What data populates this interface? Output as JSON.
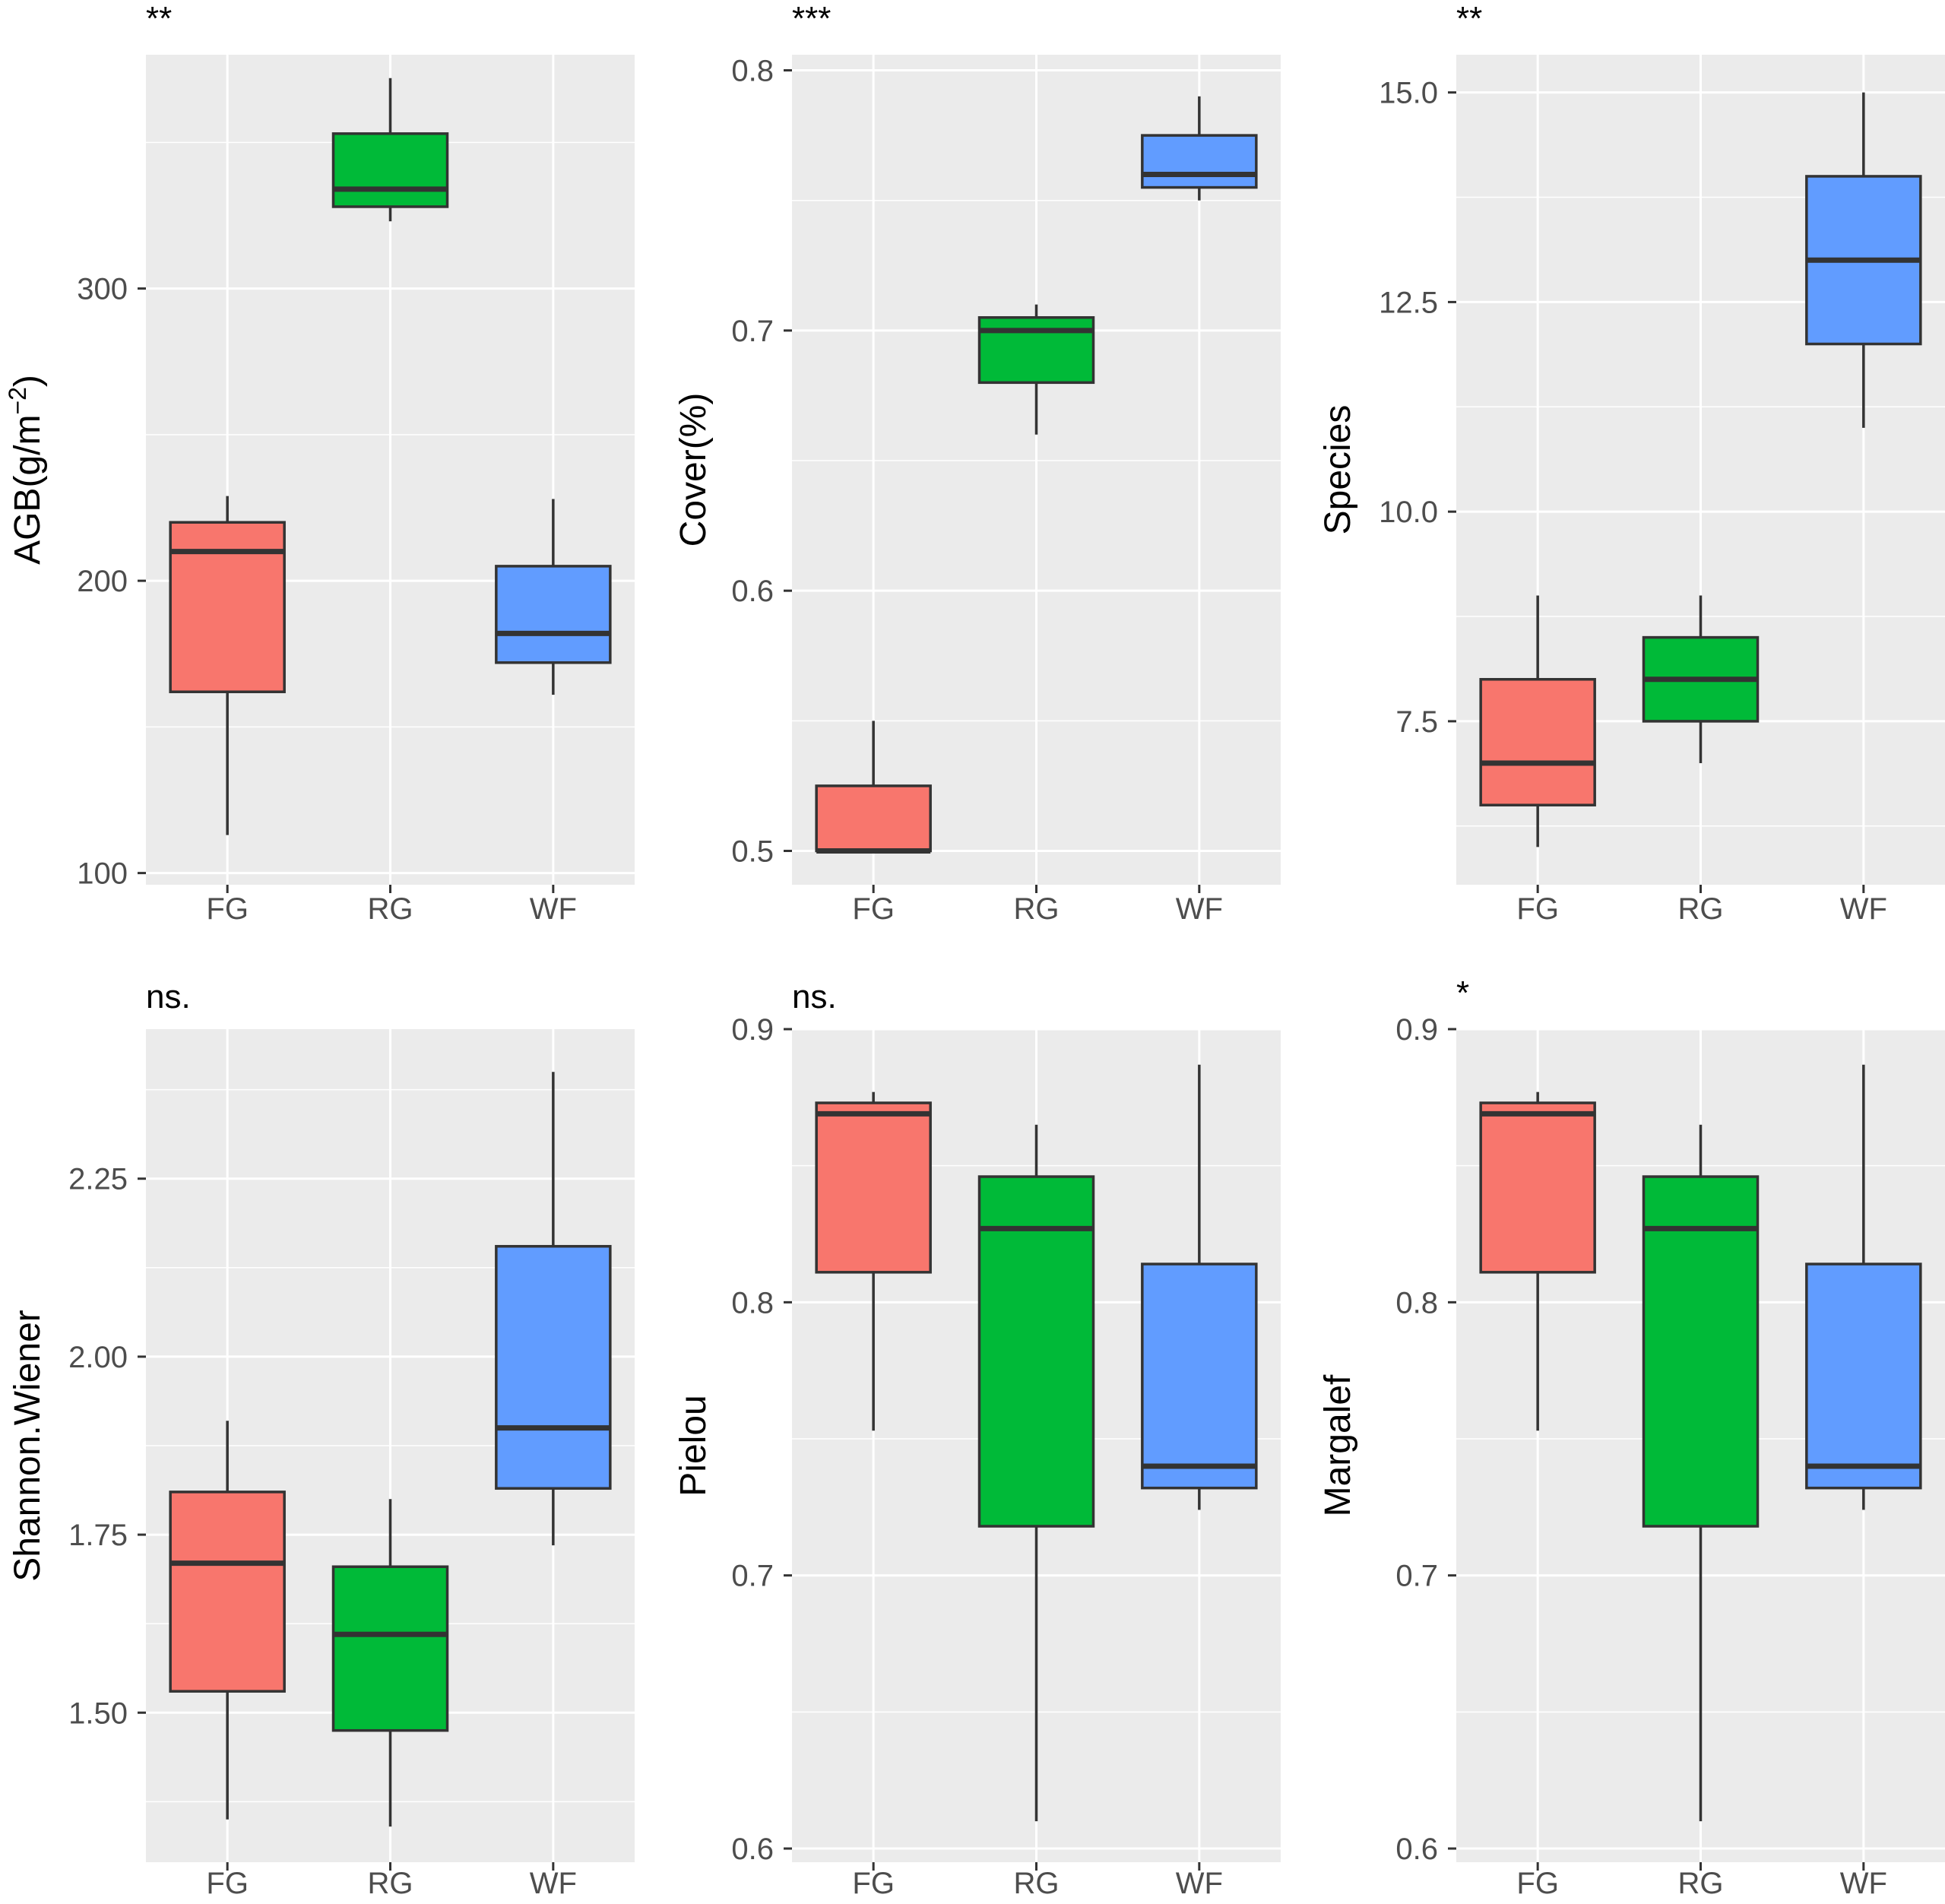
{
  "chart_data": [
    {
      "type": "box",
      "panel": 1,
      "annotation": "**",
      "ylabel": "AGB(g/m",
      "ylabel_superscript": "−2",
      "ylabel_suffix": ")",
      "ylim": [
        96,
        380
      ],
      "yticks": [
        100,
        200,
        300
      ],
      "ytick_labels": [
        "100",
        "200",
        "300"
      ],
      "categories": [
        "FG",
        "RG",
        "WF"
      ],
      "boxes": [
        {
          "group": "FG",
          "color": "#F8766D",
          "whisker_low": 113,
          "q1": 162,
          "median": 210,
          "q3": 220,
          "whisker_high": 229
        },
        {
          "group": "RG",
          "color": "#00BA38",
          "whisker_low": 323,
          "q1": 328,
          "median": 334,
          "q3": 353,
          "whisker_high": 372
        },
        {
          "group": "WF",
          "color": "#619CFF",
          "whisker_low": 161,
          "q1": 172,
          "median": 182,
          "q3": 205,
          "whisker_high": 228
        }
      ]
    },
    {
      "type": "box",
      "panel": 2,
      "annotation": "***",
      "ylabel": "Cover(%)",
      "ylim": [
        0.487,
        0.806
      ],
      "yticks": [
        0.5,
        0.6,
        0.7,
        0.8
      ],
      "ytick_labels": [
        "0.5",
        "0.6",
        "0.7",
        "0.8"
      ],
      "categories": [
        "FG",
        "RG",
        "WF"
      ],
      "boxes": [
        {
          "group": "FG",
          "color": "#F8766D",
          "whisker_low": 0.5,
          "q1": 0.5,
          "median": 0.5,
          "q3": 0.525,
          "whisker_high": 0.55
        },
        {
          "group": "RG",
          "color": "#00BA38",
          "whisker_low": 0.66,
          "q1": 0.68,
          "median": 0.7,
          "q3": 0.705,
          "whisker_high": 0.71
        },
        {
          "group": "WF",
          "color": "#619CFF",
          "whisker_low": 0.75,
          "q1": 0.755,
          "median": 0.76,
          "q3": 0.775,
          "whisker_high": 0.79
        }
      ]
    },
    {
      "type": "box",
      "panel": 3,
      "annotation": "**",
      "ylabel": "Species",
      "ylim": [
        5.55,
        15.45
      ],
      "yticks": [
        7.5,
        10.0,
        12.5,
        15.0
      ],
      "ytick_labels": [
        "7.5",
        "10.0",
        "12.5",
        "15.0"
      ],
      "categories": [
        "FG",
        "RG",
        "WF"
      ],
      "boxes": [
        {
          "group": "FG",
          "color": "#F8766D",
          "whisker_low": 6,
          "q1": 6.5,
          "median": 7,
          "q3": 8,
          "whisker_high": 9
        },
        {
          "group": "RG",
          "color": "#00BA38",
          "whisker_low": 7,
          "q1": 7.5,
          "median": 8,
          "q3": 8.5,
          "whisker_high": 9
        },
        {
          "group": "WF",
          "color": "#619CFF",
          "whisker_low": 11,
          "q1": 12,
          "median": 13,
          "q3": 14,
          "whisker_high": 15
        }
      ]
    },
    {
      "type": "box",
      "panel": 4,
      "annotation": "ns.",
      "ylabel": "Shannon.Wiener",
      "ylim": [
        1.29,
        2.46
      ],
      "yticks": [
        1.5,
        1.75,
        2.0,
        2.25
      ],
      "ytick_labels": [
        "1.50",
        "1.75",
        "2.00",
        "2.25"
      ],
      "categories": [
        "FG",
        "RG",
        "WF"
      ],
      "boxes": [
        {
          "group": "FG",
          "color": "#F8766D",
          "whisker_low": 1.35,
          "q1": 1.53,
          "median": 1.71,
          "q3": 1.81,
          "whisker_high": 1.91
        },
        {
          "group": "RG",
          "color": "#00BA38",
          "whisker_low": 1.34,
          "q1": 1.475,
          "median": 1.61,
          "q3": 1.705,
          "whisker_high": 1.8
        },
        {
          "group": "WF",
          "color": "#619CFF",
          "whisker_low": 1.735,
          "q1": 1.815,
          "median": 1.9,
          "q3": 2.155,
          "whisker_high": 2.4
        }
      ]
    },
    {
      "type": "box",
      "panel": 5,
      "annotation": "ns.",
      "ylabel": "Pielou",
      "ylim": [
        0.595,
        0.9
      ],
      "yticks": [
        0.6,
        0.7,
        0.8,
        0.9
      ],
      "ytick_labels": [
        "0.6",
        "0.7",
        "0.8",
        "0.9"
      ],
      "categories": [
        "FG",
        "RG",
        "WF"
      ],
      "boxes": [
        {
          "group": "FG",
          "color": "#F8766D",
          "whisker_low": 0.753,
          "q1": 0.811,
          "median": 0.869,
          "q3": 0.873,
          "whisker_high": 0.877
        },
        {
          "group": "RG",
          "color": "#00BA38",
          "whisker_low": 0.61,
          "q1": 0.718,
          "median": 0.827,
          "q3": 0.846,
          "whisker_high": 0.865
        },
        {
          "group": "WF",
          "color": "#619CFF",
          "whisker_low": 0.724,
          "q1": 0.732,
          "median": 0.74,
          "q3": 0.814,
          "whisker_high": 0.887
        }
      ]
    },
    {
      "type": "box",
      "panel": 6,
      "annotation": "*",
      "ylabel": "Margalef",
      "ylim": [
        0.595,
        0.9
      ],
      "yticks": [
        0.6,
        0.7,
        0.8,
        0.9
      ],
      "ytick_labels": [
        "0.6",
        "0.7",
        "0.8",
        "0.9"
      ],
      "categories": [
        "FG",
        "RG",
        "WF"
      ],
      "boxes": [
        {
          "group": "FG",
          "color": "#F8766D",
          "whisker_low": 0.753,
          "q1": 0.811,
          "median": 0.869,
          "q3": 0.873,
          "whisker_high": 0.877
        },
        {
          "group": "RG",
          "color": "#00BA38",
          "whisker_low": 0.61,
          "q1": 0.718,
          "median": 0.827,
          "q3": 0.846,
          "whisker_high": 0.865
        },
        {
          "group": "WF",
          "color": "#619CFF",
          "whisker_low": 0.724,
          "q1": 0.732,
          "median": 0.74,
          "q3": 0.814,
          "whisker_high": 0.887
        }
      ]
    }
  ]
}
